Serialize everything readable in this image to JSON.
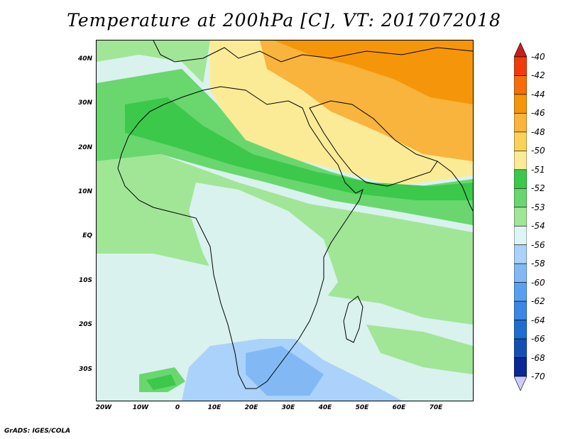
{
  "title": "Temperature at 200hPa [C], VT: 2017072018",
  "credit": "GrADS: IGES/COLA",
  "lat_labels": [
    "40N",
    "30N",
    "20N",
    "10N",
    "EQ",
    "10S",
    "20S",
    "30S"
  ],
  "lon_labels": [
    "20W",
    "10W",
    "0",
    "10E",
    "20E",
    "30E",
    "40E",
    "50E",
    "60E",
    "70E"
  ],
  "colorbar": {
    "levels": [
      "-40",
      "-42",
      "-44",
      "-46",
      "-48",
      "-50",
      "-51",
      "-52",
      "-53",
      "-54",
      "-56",
      "-58",
      "-60",
      "-62",
      "-64",
      "-66",
      "-68",
      "-70"
    ],
    "colors": [
      "#c81e1e",
      "#f03c0a",
      "#f56e0a",
      "#f5960a",
      "#f8b43c",
      "#fad25a",
      "#fbeb96",
      "#3cc84b",
      "#69d76e",
      "#a0e696",
      "#dcf5f5",
      "#aad2fa",
      "#82b9f5",
      "#5aa0f0",
      "#3c87e6",
      "#1e6ed2",
      "#1450b4",
      "#0a2896",
      "#ccccff"
    ]
  },
  "colors": {
    "ocean_pale": "#d9f2ee",
    "green_light": "#a0e696",
    "green_mid": "#69d76e",
    "green_dark": "#3cc84b",
    "yellow": "#fbeb96",
    "yellow_orange": "#fad25a",
    "orange": "#f8b43c",
    "orange_dark": "#f5960a",
    "blue_light": "#aad2fa",
    "blue_mid": "#82b9f5",
    "blue_deep": "#5aa0f0"
  }
}
